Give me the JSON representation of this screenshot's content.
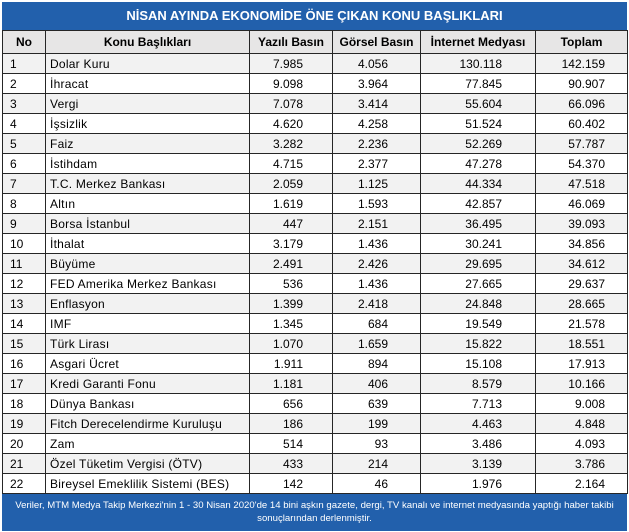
{
  "colors": {
    "band": "#2260AC",
    "band_text": "#FFFFFF",
    "grid": "#262626",
    "header_fill": "#E7E6E6",
    "stripe_fill": "#F2F2F2"
  },
  "chart_data": {
    "type": "table",
    "title": "NİSAN AYINDA EKONOMİDE ÖNE ÇIKAN KONU BAŞLIKLARI",
    "columns": [
      "No",
      "Konu Başlıkları",
      "Yazılı Basın",
      "Görsel Basın",
      "İnternet Medyası",
      "Toplam"
    ],
    "rows": [
      [
        "1",
        "Dolar Kuru",
        "7.985",
        "4.056",
        "130.118",
        "142.159"
      ],
      [
        "2",
        "İhracat",
        "9.098",
        "3.964",
        "77.845",
        "90.907"
      ],
      [
        "3",
        "Vergi",
        "7.078",
        "3.414",
        "55.604",
        "66.096"
      ],
      [
        "4",
        "İşsizlik",
        "4.620",
        "4.258",
        "51.524",
        "60.402"
      ],
      [
        "5",
        "Faiz",
        "3.282",
        "2.236",
        "52.269",
        "57.787"
      ],
      [
        "6",
        "İstihdam",
        "4.715",
        "2.377",
        "47.278",
        "54.370"
      ],
      [
        "7",
        "T.C. Merkez Bankası",
        "2.059",
        "1.125",
        "44.334",
        "47.518"
      ],
      [
        "8",
        "Altın",
        "1.619",
        "1.593",
        "42.857",
        "46.069"
      ],
      [
        "9",
        "Borsa İstanbul",
        "447",
        "2.151",
        "36.495",
        "39.093"
      ],
      [
        "10",
        "İthalat",
        "3.179",
        "1.436",
        "30.241",
        "34.856"
      ],
      [
        "11",
        "Büyüme",
        "2.491",
        "2.426",
        "29.695",
        "34.612"
      ],
      [
        "12",
        "FED Amerika Merkez Bankası",
        "536",
        "1.436",
        "27.665",
        "29.637"
      ],
      [
        "13",
        "Enflasyon",
        "1.399",
        "2.418",
        "24.848",
        "28.665"
      ],
      [
        "14",
        "IMF",
        "1.345",
        "684",
        "19.549",
        "21.578"
      ],
      [
        "15",
        "Türk Lirası",
        "1.070",
        "1.659",
        "15.822",
        "18.551"
      ],
      [
        "16",
        "Asgari Ücret",
        "1.911",
        "894",
        "15.108",
        "17.913"
      ],
      [
        "17",
        "Kredi Garanti Fonu",
        "1.181",
        "406",
        "8.579",
        "10.166"
      ],
      [
        "18",
        "Dünya Bankası",
        "656",
        "639",
        "7.713",
        "9.008"
      ],
      [
        "19",
        "Fitch Derecelendirme Kuruluşu",
        "186",
        "199",
        "4.463",
        "4.848"
      ],
      [
        "20",
        "Zam",
        "514",
        "93",
        "3.486",
        "4.093"
      ],
      [
        "21",
        "Özel Tüketim Vergisi (ÖTV)",
        "433",
        "214",
        "3.139",
        "3.786"
      ],
      [
        "22",
        "Bireysel Emeklilik Sistemi (BES)",
        "142",
        "46",
        "1.976",
        "2.164"
      ]
    ],
    "note": [
      "Veriler, MTM Medya Takip Merkezi'nin 1 - 30 Nisan 2020'de 14 bini aşkın gazete, dergi, TV kanalı ve internet medyasında yaptığı haber takibi",
      "sonuçlarından derlenmiştir."
    ]
  }
}
